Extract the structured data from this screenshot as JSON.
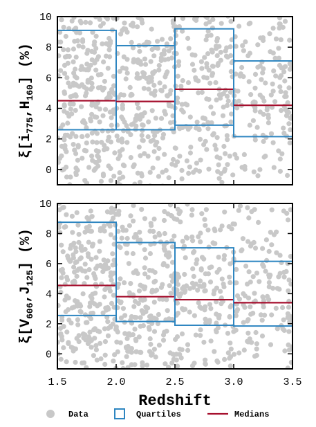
{
  "chart_data": [
    {
      "type": "scatter",
      "panel": "top",
      "ylabel": {
        "prefix": "ξ[i",
        "sub1": "775",
        "mid": ",H",
        "sub2": "160",
        "suffix": "]  (%)"
      },
      "xlim": [
        1.5,
        3.5
      ],
      "ylim": [
        -1,
        10
      ],
      "yticks": [
        0,
        2,
        4,
        6,
        8,
        10
      ],
      "xticks": [
        1.5,
        2.0,
        2.5,
        3.0,
        3.5
      ],
      "show_x_tick_labels": false,
      "bins": [
        {
          "x0": 1.5,
          "x1": 2.0,
          "q1": 2.6,
          "q3": 9.1,
          "median": 4.5
        },
        {
          "x0": 2.0,
          "x1": 2.5,
          "q1": 2.6,
          "q3": 8.1,
          "median": 4.45
        },
        {
          "x0": 2.5,
          "x1": 3.0,
          "q1": 2.9,
          "q3": 9.2,
          "median": 5.25
        },
        {
          "x0": 3.0,
          "x1": 3.5,
          "q1": 2.15,
          "q3": 7.1,
          "median": 4.2
        }
      ]
    },
    {
      "type": "scatter",
      "panel": "bottom",
      "ylabel": {
        "prefix": "ξ[V",
        "sub1": "606",
        "mid": ",J",
        "sub2": "125",
        "suffix": "]  (%)"
      },
      "xlim": [
        1.5,
        3.5
      ],
      "ylim": [
        -1,
        10
      ],
      "yticks": [
        0,
        2,
        4,
        6,
        8,
        10
      ],
      "xticks": [
        1.5,
        2.0,
        2.5,
        3.0,
        3.5
      ],
      "xticklabels": [
        "1.5",
        "2.0",
        "2.5",
        "3.0",
        "3.5"
      ],
      "show_x_tick_labels": true,
      "xlabel": "Redshift",
      "bins": [
        {
          "x0": 1.5,
          "x1": 2.0,
          "q1": 2.55,
          "q3": 8.75,
          "median": 4.55
        },
        {
          "x0": 2.0,
          "x1": 2.5,
          "q1": 2.15,
          "q3": 7.4,
          "median": 3.8
        },
        {
          "x0": 2.5,
          "x1": 3.0,
          "q1": 1.9,
          "q3": 7.05,
          "median": 3.6
        },
        {
          "x0": 3.0,
          "x1": 3.5,
          "q1": 1.85,
          "q3": 6.15,
          "median": 3.4
        }
      ]
    }
  ],
  "legend": {
    "placement": "bottom",
    "items": [
      {
        "label": "Data",
        "kind": "dot"
      },
      {
        "label": "Quartiles",
        "kind": "box"
      },
      {
        "label": "Medians",
        "kind": "line"
      }
    ]
  },
  "colors": {
    "data": "#c8c8c8",
    "quartiles": "#2e86c1",
    "medians": "#a50f2d",
    "axes": "#000000"
  }
}
